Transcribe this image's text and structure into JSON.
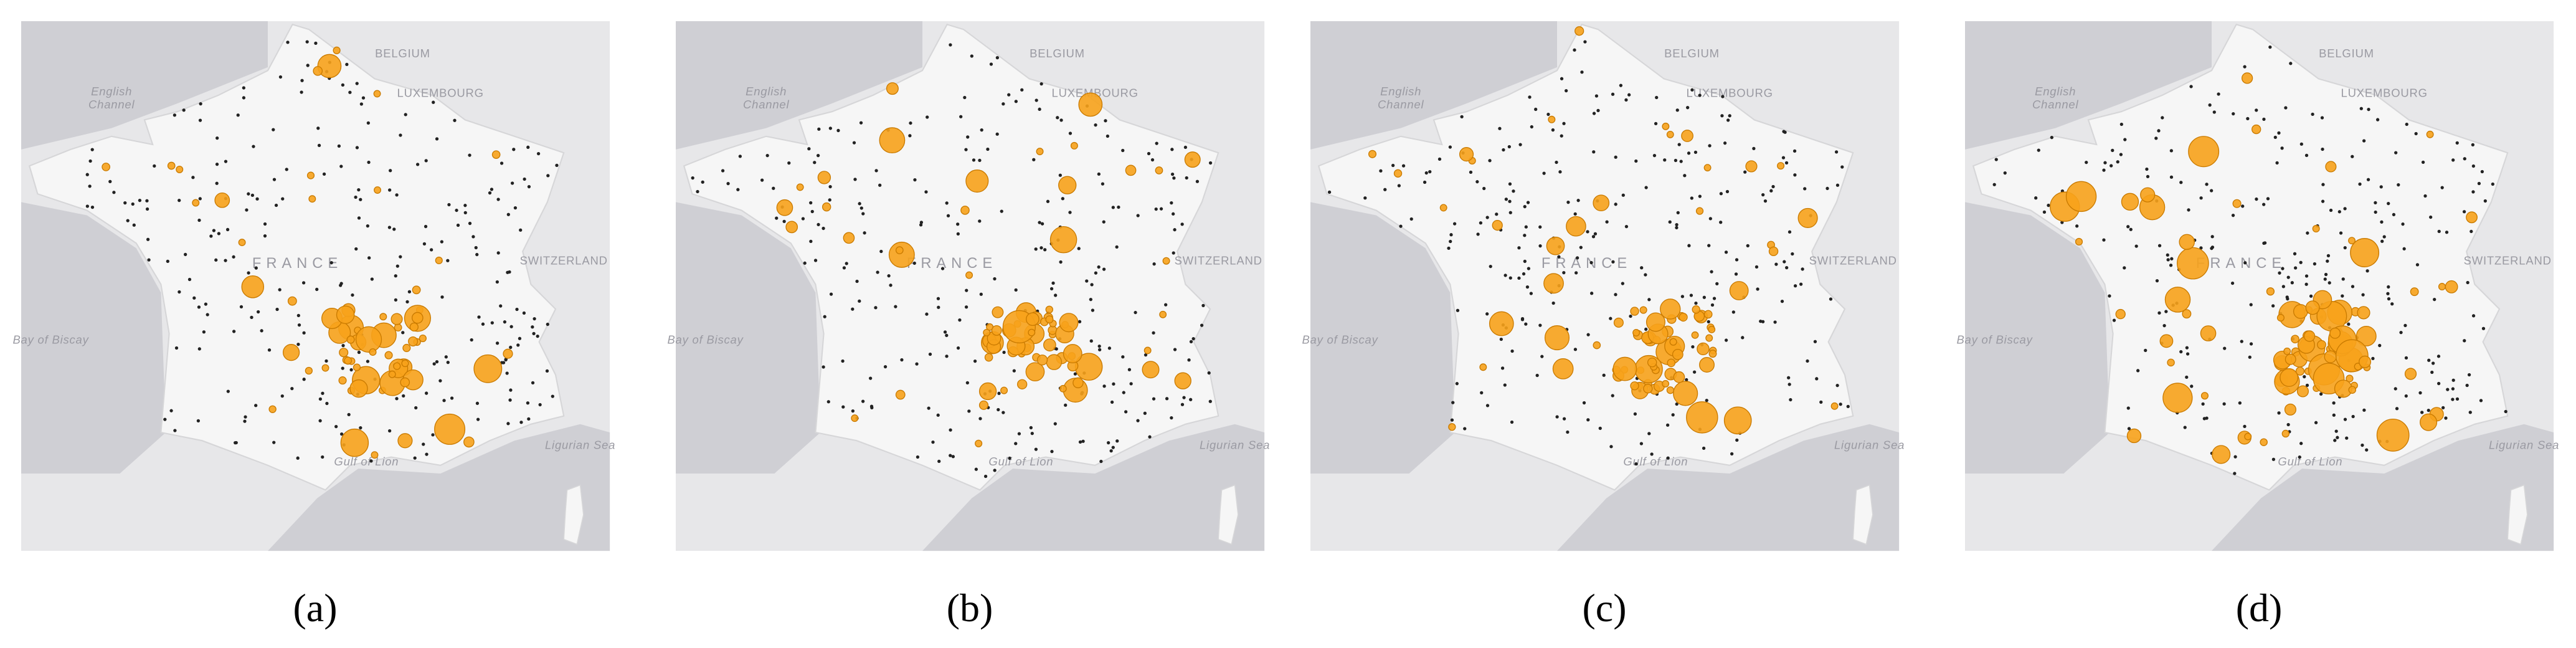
{
  "map_labels": [
    "English",
    "Channel",
    "BELGIUM",
    "LUXEMBOURG",
    "FRANCE",
    "SWITZERLAND",
    "Bay of Biscay",
    "Gulf of Lion",
    "Ligurian Sea"
  ],
  "panels": [
    {
      "caption": "(a)"
    },
    {
      "caption": "(b)"
    },
    {
      "caption": "(c)"
    },
    {
      "caption": "(d)"
    }
  ]
}
